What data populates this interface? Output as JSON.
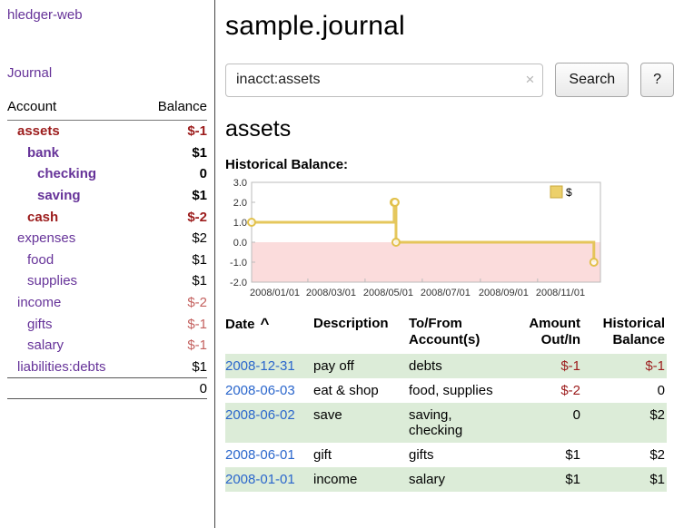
{
  "brand": "hledger-web",
  "nav": {
    "journal": "Journal"
  },
  "colors": {
    "purple": "#663399",
    "negative": "#9c1c1c",
    "negative_light": "#c4615f",
    "link": "#2a66cc",
    "row_green": "#dcecd8",
    "chart_gold": "#e2c14b",
    "chart_neg_bg": "#fbdcdc",
    "legend_fill": "#ecd06b"
  },
  "sidebar": {
    "col_account": "Account",
    "col_balance": "Balance",
    "accounts": [
      {
        "name": "assets",
        "balance": "$-1",
        "level": 0,
        "active": true
      },
      {
        "name": "bank",
        "balance": "$1",
        "level": 1,
        "active": true
      },
      {
        "name": "checking",
        "balance": "0",
        "level": 2,
        "active": true
      },
      {
        "name": "saving",
        "balance": "$1",
        "level": 2,
        "active": true
      },
      {
        "name": "cash",
        "balance": "$-2",
        "level": 1,
        "active": true
      },
      {
        "name": "expenses",
        "balance": "$2",
        "level": 0,
        "active": false
      },
      {
        "name": "food",
        "balance": "$1",
        "level": 1,
        "active": false
      },
      {
        "name": "supplies",
        "balance": "$1",
        "level": 1,
        "active": false
      },
      {
        "name": "income",
        "balance": "$-2",
        "level": 0,
        "active": false
      },
      {
        "name": "gifts",
        "balance": "$-1",
        "level": 1,
        "active": false
      },
      {
        "name": "salary",
        "balance": "$-1",
        "level": 1,
        "active": false
      },
      {
        "name": "liabilities:debts",
        "balance": "$1",
        "level": 0,
        "active": false
      }
    ],
    "total": "0"
  },
  "main": {
    "title": "sample.journal",
    "search": {
      "value": "inacct:assets",
      "clear": "×",
      "button": "Search",
      "help": "?"
    },
    "heading": "assets",
    "chart_title": "Historical Balance:"
  },
  "chart_data": {
    "type": "line",
    "title": "Historical Balance",
    "legend": [
      "$"
    ],
    "ylim": [
      -2.0,
      3.0
    ],
    "yticks": [
      3.0,
      2.0,
      1.0,
      0.0,
      -1.0,
      -2.0
    ],
    "xrange": [
      "2008/01/01",
      "2009/01/07"
    ],
    "xticks": [
      "2008/01/01",
      "2008/03/01",
      "2008/05/01",
      "2008/07/01",
      "2008/09/01",
      "2008/11/01"
    ],
    "series": [
      {
        "name": "$",
        "points": [
          {
            "x": "2008-01-01",
            "y": 1
          },
          {
            "x": "2008-06-01",
            "y": 2
          },
          {
            "x": "2008-06-02",
            "y": 2
          },
          {
            "x": "2008-06-03",
            "y": 0
          },
          {
            "x": "2008-12-31",
            "y": -1
          }
        ]
      }
    ]
  },
  "table": {
    "sort_icon": "^",
    "headers": [
      [
        "Date",
        ""
      ],
      [
        "Description",
        ""
      ],
      [
        "To/From",
        "Account(s)"
      ],
      [
        "Amount",
        "Out/In"
      ],
      [
        "Historical",
        "Balance"
      ]
    ],
    "rows": [
      {
        "date": "2008-12-31",
        "description": "pay off",
        "accounts": "debts",
        "amount": "$-1",
        "balance": "$-1"
      },
      {
        "date": "2008-06-03",
        "description": "eat & shop",
        "accounts": "food, supplies",
        "amount": "$-2",
        "balance": "0"
      },
      {
        "date": "2008-06-02",
        "description": "save",
        "accounts": "saving, checking",
        "amount": "0",
        "balance": "$2"
      },
      {
        "date": "2008-06-01",
        "description": "gift",
        "accounts": "gifts",
        "amount": "$1",
        "balance": "$2"
      },
      {
        "date": "2008-01-01",
        "description": "income",
        "accounts": "salary",
        "amount": "$1",
        "balance": "$1"
      }
    ]
  }
}
